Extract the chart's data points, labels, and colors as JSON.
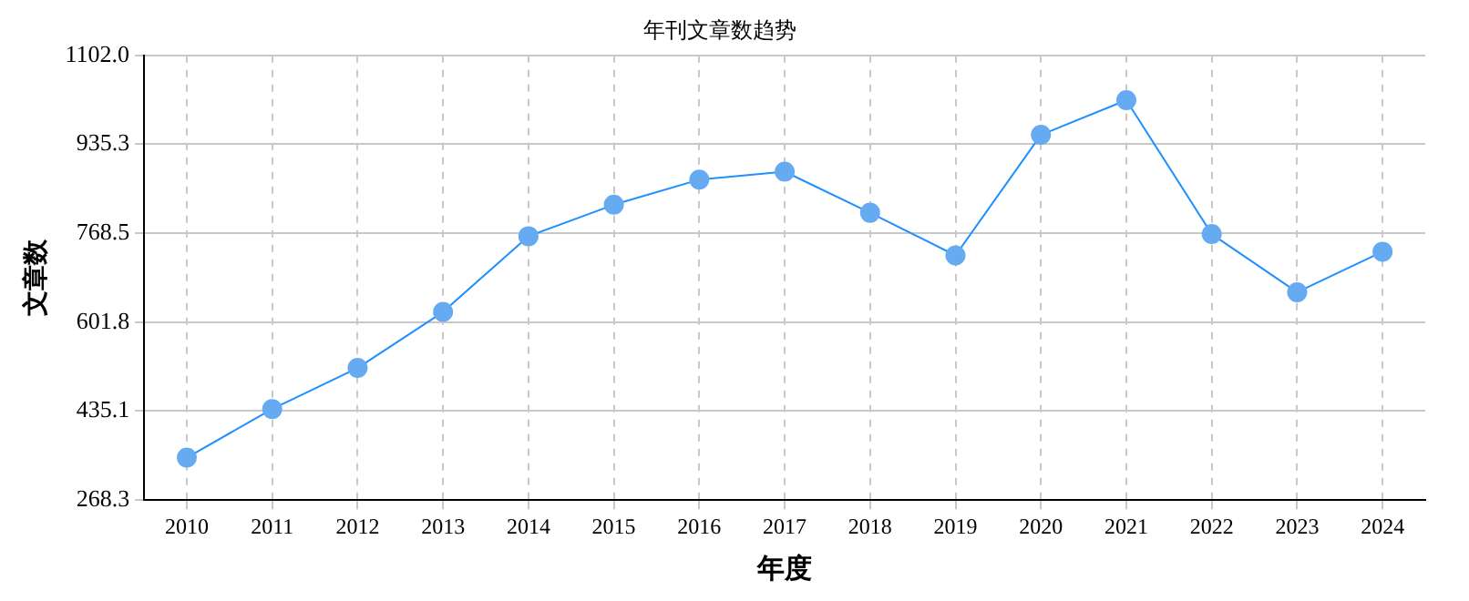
{
  "chart_data": {
    "type": "line",
    "title": "年刊文章数趋势",
    "xlabel": "年度",
    "ylabel": "文章数",
    "categories": [
      "2010",
      "2011",
      "2012",
      "2013",
      "2014",
      "2015",
      "2016",
      "2017",
      "2018",
      "2019",
      "2020",
      "2021",
      "2022",
      "2023",
      "2024"
    ],
    "series": [
      {
        "color": "#1e90ff",
        "values": [
          348,
          439,
          516,
          621,
          763,
          822,
          869,
          884,
          807,
          727,
          953,
          1018,
          767,
          658,
          734
        ]
      }
    ],
    "ylim": [
      268.3,
      1102.0
    ],
    "yticks": [
      268.3,
      435.1,
      601.8,
      768.5,
      935.3,
      {
        "value": 1102.0,
        "label": "1102.0"
      }
    ],
    "grid": true,
    "legend": false,
    "marker": "circle",
    "line_style": "solid"
  }
}
